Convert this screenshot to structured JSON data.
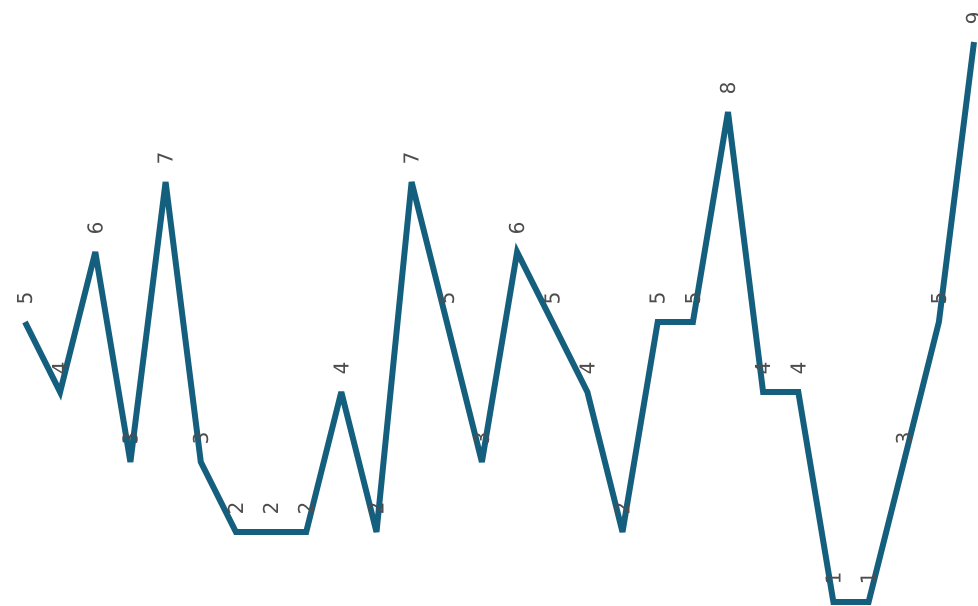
{
  "chart_data": {
    "type": "line",
    "title": "",
    "xlabel": "",
    "ylabel": "",
    "x": [
      1,
      2,
      3,
      4,
      5,
      6,
      7,
      8,
      9,
      10,
      11,
      12,
      13,
      14,
      15,
      16,
      17,
      18,
      19,
      20,
      21,
      22,
      23,
      24,
      25,
      26,
      27,
      28
    ],
    "values": [
      5,
      4,
      6,
      3,
      7,
      3,
      2,
      2,
      2,
      4,
      2,
      7,
      5,
      3,
      6,
      5,
      4,
      2,
      5,
      5,
      8,
      4,
      4,
      1,
      1,
      3,
      5,
      9
    ],
    "data_labels": [
      "5",
      "4",
      "6",
      "3",
      "7",
      "3",
      "2",
      "2",
      "2",
      "4",
      "2",
      "7",
      "5",
      "3",
      "6",
      "5",
      "4",
      "2",
      "5",
      "5",
      "8",
      "4",
      "4",
      "1",
      "1",
      "3",
      "5",
      "9"
    ],
    "ylim": [
      1,
      8
    ],
    "grid": false,
    "axes_visible": false,
    "legend": "none",
    "colors": {
      "line": "#155f7e",
      "label": "#4d4d4d"
    }
  }
}
